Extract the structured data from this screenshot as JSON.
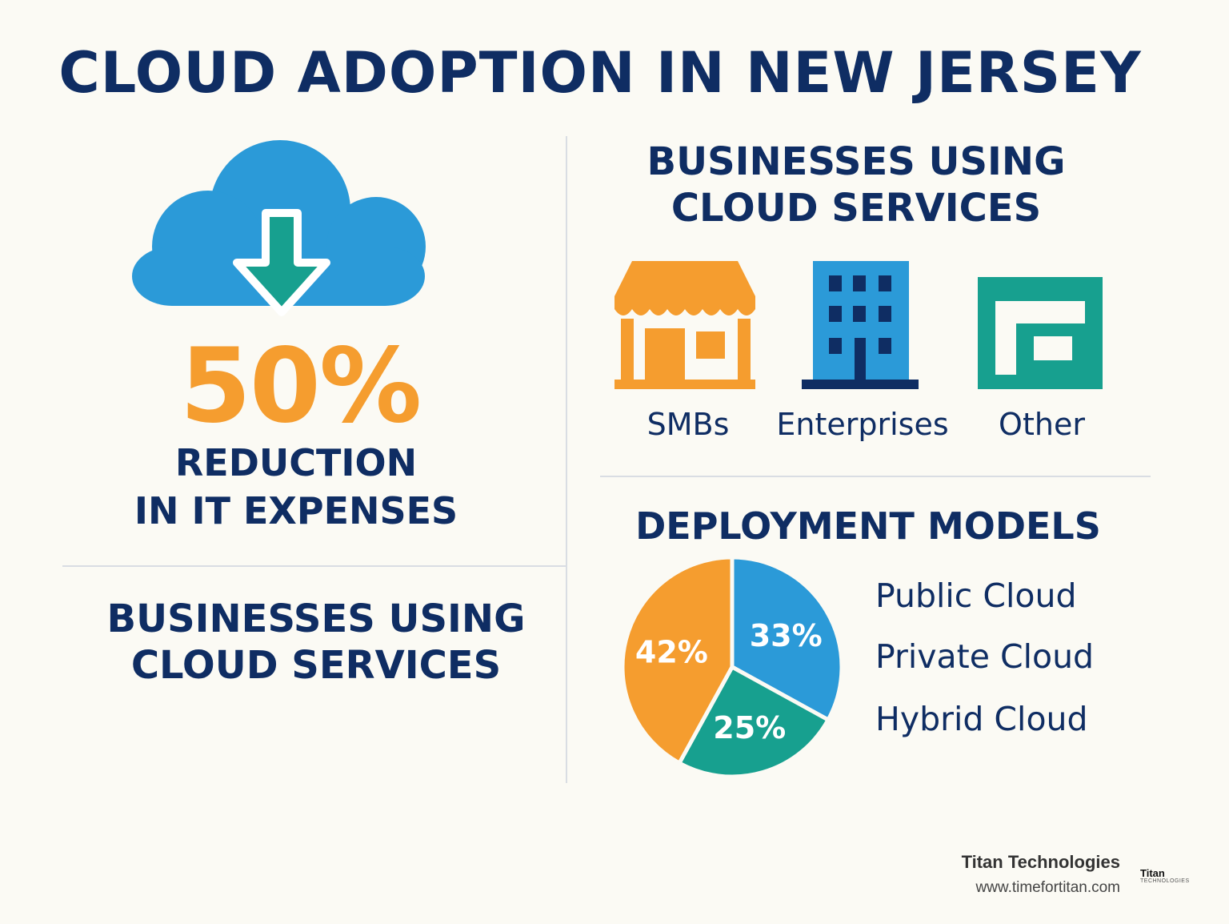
{
  "title": "CLOUD ADOPTION IN NEW JERSEY",
  "left_panel": {
    "stat_value": "50%",
    "stat_label_line1": "REDUCTION",
    "stat_label_line2": "IN IT EXPENSES",
    "heading_line1": "BUSINESSES USING",
    "heading_line2": "CLOUD SERVICES",
    "icon": "cloud-download-icon"
  },
  "right_panel": {
    "heading_line1": "BUSINESSES USING",
    "heading_line2": "CLOUD SERVICES",
    "business_types": [
      {
        "label": "SMBs",
        "icon": "storefront-icon"
      },
      {
        "label": "Enterprises",
        "icon": "office-building-icon"
      },
      {
        "label": "Other",
        "icon": "shop-building-icon"
      }
    ]
  },
  "deployment": {
    "heading": "DEPLOYMENT MODELS",
    "legend": [
      "Public Cloud",
      "Private Cloud",
      "Hybrid Cloud"
    ]
  },
  "chart_data": {
    "type": "pie",
    "title": "DEPLOYMENT MODELS",
    "slices": [
      {
        "label": "33%",
        "value": 33,
        "color": "#2b9ad8"
      },
      {
        "label": "25%",
        "value": 25,
        "color": "#17a08f"
      },
      {
        "label": "42%",
        "value": 42,
        "color": "#f59d2f"
      }
    ],
    "legend_labels": [
      "Public Cloud",
      "Private Cloud",
      "Hybrid Cloud"
    ]
  },
  "footer": {
    "company": "Titan Technologies",
    "url": "www.timefortitan.com",
    "logo_line1": "Titan",
    "logo_line2": "TECHNOLOGIES"
  },
  "colors": {
    "navy": "#0f2d63",
    "orange": "#f59d2f",
    "blue": "#2b9ad8",
    "teal": "#17a08f",
    "background": "#fbfaf4"
  }
}
